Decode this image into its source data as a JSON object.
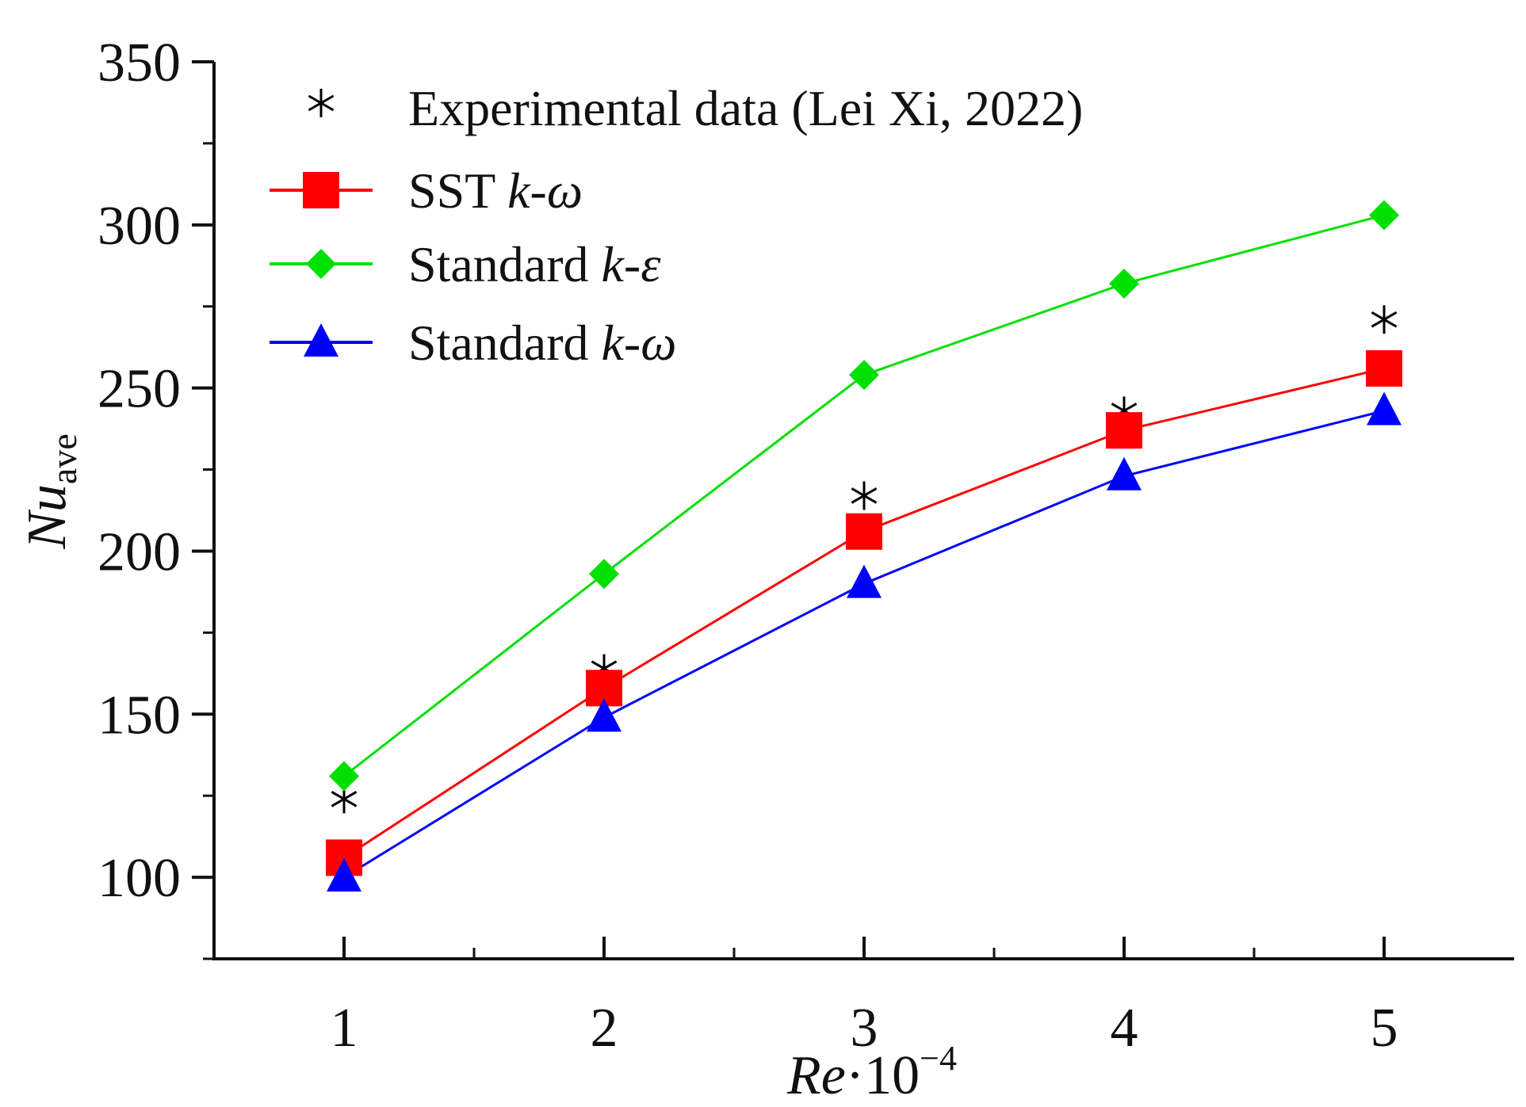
{
  "chart_data": {
    "type": "line",
    "title": "",
    "xlabel": {
      "base": "Re",
      "mid": "·10",
      "sup": "−4"
    },
    "ylabel": {
      "base": "Nu",
      "sub": "ave"
    },
    "x": [
      1,
      2,
      3,
      4,
      5
    ],
    "xlim": [
      0.5,
      5.5
    ],
    "ylim": [
      75,
      350
    ],
    "x_ticks": [
      1,
      2,
      3,
      4,
      5
    ],
    "x_tick_labels": [
      "1",
      "2",
      "3",
      "4",
      "5"
    ],
    "y_ticks": [
      100,
      150,
      200,
      250,
      300,
      350
    ],
    "y_tick_labels": [
      "100",
      "150",
      "200",
      "250",
      "300",
      "350"
    ],
    "grid": false,
    "legend_position": "top-left",
    "series": [
      {
        "name": "Experimental data (Lei Xi, 2022)",
        "label_base": "Experimental data (Lei Xi, 2022)",
        "label_italic": "",
        "marker": "asterisk",
        "line": false,
        "color": "#000000",
        "values": [
          124,
          164,
          217,
          243,
          271
        ]
      },
      {
        "name": "SST k-ω",
        "label_base": "SST ",
        "label_italic": "k-ω",
        "marker": "square",
        "line": true,
        "color": "#ff0000",
        "values": [
          106,
          158,
          206,
          237,
          256
        ]
      },
      {
        "name": "Standard k-ε",
        "label_base": "Standard ",
        "label_italic": "k-ε",
        "marker": "diamond",
        "line": true,
        "color": "#00e000",
        "values": [
          131,
          193,
          254,
          282,
          303
        ]
      },
      {
        "name": "Standard k-ω",
        "label_base": "Standard ",
        "label_italic": "k-ω",
        "marker": "triangle",
        "line": true,
        "color": "#0000ff",
        "values": [
          100,
          149,
          190,
          223,
          243
        ]
      }
    ]
  }
}
